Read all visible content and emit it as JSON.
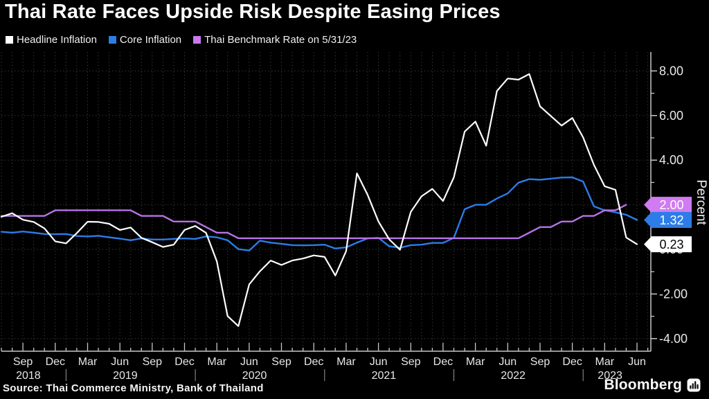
{
  "title": "Thai Rate Faces Upside Risk Despite Easing Prices",
  "legend": {
    "items": [
      {
        "label": "Headline Inflation",
        "color": "#ffffff"
      },
      {
        "label": "Core Inflation",
        "color": "#2d7ce8"
      },
      {
        "label": "Thai Benchmark Rate on 5/31/23",
        "color": "#c97bee"
      }
    ]
  },
  "source": "Source: Thai Commerce Ministry, Bank of Thailand",
  "branding": "Bloomberg",
  "chart_data": {
    "type": "line",
    "title": "Thai Rate Faces Upside Risk Despite Easing Prices",
    "xlabel": "",
    "ylabel": "Percent",
    "ylim": [
      -4.6,
      8.9
    ],
    "grid": "dotted; horizontal every 2.00, vertical every month",
    "legend_position": "top-left",
    "x_start_month": "2018-07",
    "x_end_month": "2023-06",
    "n_month_gridlines": 61,
    "y_major_ticks": [
      8,
      6,
      4,
      2,
      0,
      -2,
      -4
    ],
    "y_minor_ticks": [
      7,
      5,
      3,
      1,
      -1,
      -3
    ],
    "y_tick_labels": [
      "8.00",
      "6.00",
      "4.00",
      "2.00",
      "0.00",
      "-2.00",
      "-4.00"
    ],
    "x_quarter_ticks": [
      {
        "index": 2,
        "label": "Sep"
      },
      {
        "index": 5,
        "label": "Dec"
      },
      {
        "index": 8,
        "label": "Mar"
      },
      {
        "index": 11,
        "label": "Jun"
      },
      {
        "index": 14,
        "label": "Sep"
      },
      {
        "index": 17,
        "label": "Dec"
      },
      {
        "index": 20,
        "label": "Mar"
      },
      {
        "index": 23,
        "label": "Jun"
      },
      {
        "index": 26,
        "label": "Sep"
      },
      {
        "index": 29,
        "label": "Dec"
      },
      {
        "index": 32,
        "label": "Mar"
      },
      {
        "index": 35,
        "label": "Jun"
      },
      {
        "index": 38,
        "label": "Sep"
      },
      {
        "index": 41,
        "label": "Dec"
      },
      {
        "index": 44,
        "label": "Mar"
      },
      {
        "index": 47,
        "label": "Jun"
      },
      {
        "index": 50,
        "label": "Sep"
      },
      {
        "index": 53,
        "label": "Dec"
      },
      {
        "index": 56,
        "label": "Mar"
      },
      {
        "index": 59,
        "label": "Jun"
      }
    ],
    "x_year_labels": [
      {
        "label": "2018",
        "index": 2.5
      },
      {
        "label": "2019",
        "index": 11.5
      },
      {
        "label": "2020",
        "index": 23.5
      },
      {
        "label": "2021",
        "index": 35.5
      },
      {
        "label": "2022",
        "index": 47.5
      },
      {
        "label": "2023",
        "index": 56.5
      }
    ],
    "x_year_dividers": [
      6,
      18,
      30,
      42,
      54
    ],
    "series": [
      {
        "name": "Core Inflation",
        "color": "#2d7ce8",
        "end_badge": {
          "text": "1.32",
          "bg": "#2d7ce8",
          "fg": "#ffffff",
          "value": 1.32
        },
        "values": [
          0.79,
          0.75,
          0.8,
          0.75,
          0.69,
          0.68,
          0.69,
          0.6,
          0.58,
          0.61,
          0.54,
          0.48,
          0.41,
          0.49,
          0.44,
          0.44,
          0.47,
          0.49,
          0.47,
          0.58,
          0.54,
          0.41,
          0.01,
          -0.05,
          0.39,
          0.3,
          0.25,
          0.19,
          0.18,
          0.19,
          0.21,
          0.04,
          0.09,
          0.3,
          0.49,
          0.52,
          0.14,
          0.07,
          0.19,
          0.21,
          0.29,
          0.29,
          0.52,
          1.8,
          2.0,
          2.0,
          2.28,
          2.51,
          2.99,
          3.15,
          3.12,
          3.17,
          3.22,
          3.23,
          3.04,
          1.93,
          1.75,
          1.66,
          1.55,
          1.32
        ]
      },
      {
        "name": "Thai Benchmark Rate on 5/31/23",
        "color": "#b873e8",
        "end_badge": {
          "text": "2.00",
          "bg": "#d07bf0",
          "fg": "#ffffff",
          "value": 2.0
        },
        "values": [
          1.5,
          1.5,
          1.5,
          1.5,
          1.5,
          1.75,
          1.75,
          1.75,
          1.75,
          1.75,
          1.75,
          1.75,
          1.75,
          1.5,
          1.5,
          1.5,
          1.25,
          1.25,
          1.25,
          1.0,
          0.75,
          0.75,
          0.5,
          0.5,
          0.5,
          0.5,
          0.5,
          0.5,
          0.5,
          0.5,
          0.5,
          0.5,
          0.5,
          0.5,
          0.5,
          0.5,
          0.5,
          0.5,
          0.5,
          0.5,
          0.5,
          0.5,
          0.5,
          0.5,
          0.5,
          0.5,
          0.5,
          0.5,
          0.5,
          0.75,
          1.0,
          1.0,
          1.25,
          1.25,
          1.5,
          1.5,
          1.75,
          1.75,
          2.0
        ]
      },
      {
        "name": "Headline Inflation",
        "color": "#ffffff",
        "end_badge": {
          "text": "0.23",
          "bg": "#ffffff",
          "fg": "#000000",
          "value": 0.23
        },
        "values": [
          1.46,
          1.62,
          1.33,
          1.23,
          0.94,
          0.36,
          0.27,
          0.73,
          1.24,
          1.23,
          1.15,
          0.87,
          0.98,
          0.52,
          0.32,
          0.11,
          0.21,
          0.87,
          1.05,
          0.74,
          -0.54,
          -2.99,
          -3.44,
          -1.57,
          -0.98,
          -0.5,
          -0.7,
          -0.5,
          -0.41,
          -0.27,
          -0.34,
          -1.17,
          -0.08,
          3.41,
          2.44,
          1.25,
          0.45,
          -0.02,
          1.68,
          2.38,
          2.71,
          2.17,
          3.23,
          5.28,
          5.73,
          4.65,
          7.1,
          7.66,
          7.61,
          7.86,
          6.41,
          5.98,
          5.55,
          5.89,
          5.02,
          3.79,
          2.83,
          2.67,
          0.53,
          0.23
        ]
      }
    ],
    "colors": {
      "background": "#000000",
      "grid": "#383838",
      "axis": "#c8c8c8",
      "tick_label": "#e8e8e8"
    }
  }
}
